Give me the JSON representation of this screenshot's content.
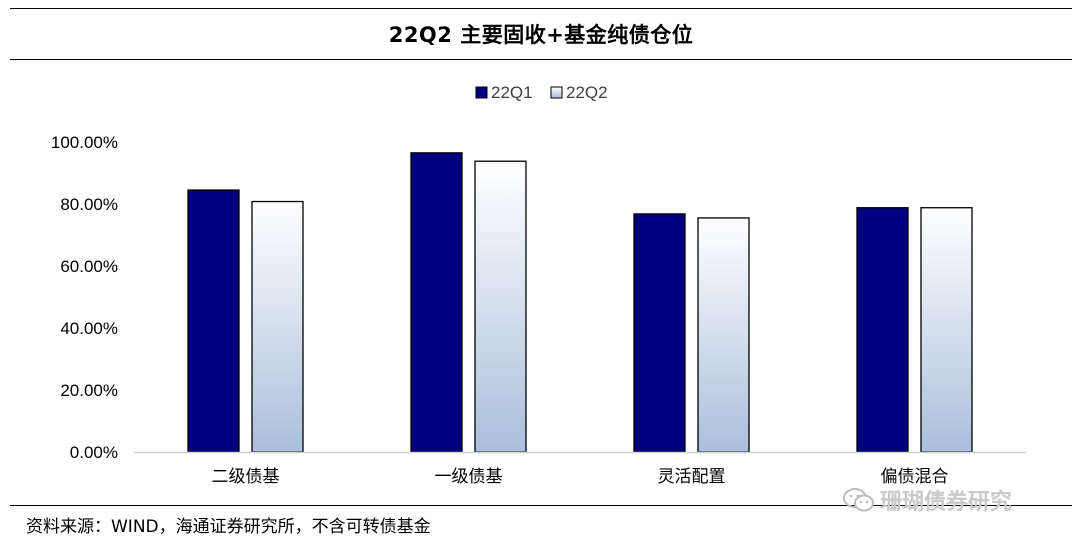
{
  "header": {
    "title": "22Q2 主要固收+基金纯债仓位"
  },
  "footer": {
    "source": "资料来源：WIND，海通证券研究所，不含可转债基金"
  },
  "watermark": {
    "text": "珊瑚债券研究",
    "icon": "wechat-icon"
  },
  "colors": {
    "q1": "#000080",
    "q2_top": "#ffffff",
    "q2_bottom": "#a9bfdc",
    "axis": "#d0d0d0"
  },
  "chart_data": {
    "type": "bar",
    "title": "22Q2 主要固收+基金纯债仓位",
    "xlabel": "",
    "ylabel": "",
    "categories": [
      "二级债基",
      "一级债基",
      "灵活配置",
      "偏债混合"
    ],
    "series": [
      {
        "name": "22Q1",
        "values": [
          84.5,
          96.5,
          76.8,
          78.8
        ]
      },
      {
        "name": "22Q2",
        "values": [
          80.8,
          93.8,
          75.5,
          78.8
        ]
      }
    ],
    "ylim": [
      0,
      100
    ],
    "yticks": [
      "0.00%",
      "20.00%",
      "40.00%",
      "60.00%",
      "80.00%",
      "100.00%"
    ],
    "legend_position": "top-center",
    "grid": false
  }
}
